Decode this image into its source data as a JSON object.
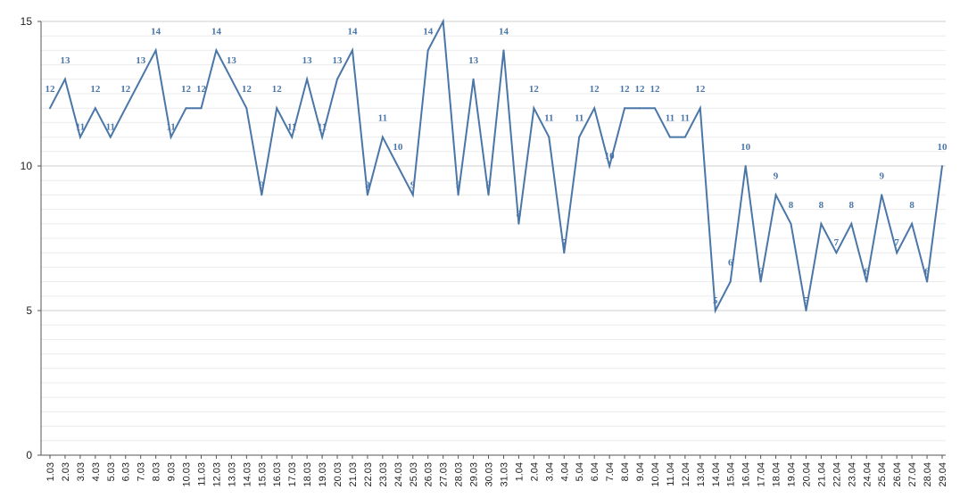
{
  "chart_data": {
    "type": "line",
    "title": "",
    "xlabel": "",
    "ylabel": "",
    "ylim": [
      0,
      15
    ],
    "yticks": [
      0,
      5,
      10,
      15
    ],
    "grid": true,
    "line_color": "#4a76a8",
    "label_color": "#4a76a8",
    "categories": [
      "1.03",
      "2.03",
      "3.03",
      "4.03",
      "5.03",
      "6.03",
      "7.03",
      "8.03",
      "9.03",
      "10.03",
      "11.03",
      "12.03",
      "13.03",
      "14.03",
      "15.03",
      "16.03",
      "17.03",
      "18.03",
      "19.03",
      "20.03",
      "21.03",
      "22.03",
      "23.03",
      "24.03",
      "25.03",
      "26.03",
      "27.03",
      "28.03",
      "29.03",
      "30.03",
      "31.03",
      "1.04",
      "2.04",
      "3.04",
      "4.04",
      "5.04",
      "6.04",
      "7.04",
      "8.04",
      "9.04",
      "10.04",
      "11.04",
      "12.04",
      "13.04",
      "14.04",
      "15.04",
      "16.04",
      "17.04",
      "18.04",
      "19.04",
      "20.04",
      "21.04",
      "22.04",
      "23.04",
      "24.04",
      "25.04",
      "26.04",
      "27.04",
      "28.04",
      "29.04"
    ],
    "series": [
      {
        "values": [
          12,
          13,
          11,
          12,
          11,
          12,
          13,
          14,
          11,
          12,
          12,
          14,
          13,
          12,
          9,
          12,
          11,
          13,
          11,
          13,
          14,
          9,
          11,
          10,
          9,
          14,
          15,
          9,
          13,
          9,
          14,
          8,
          12,
          11,
          7,
          11,
          12,
          10,
          12,
          12,
          12,
          11,
          11,
          12,
          5,
          6,
          10,
          6,
          9,
          8,
          5,
          8,
          7,
          8,
          6,
          9,
          7,
          8,
          6,
          10
        ],
        "labels": [
          "12",
          "13",
          "11",
          "12",
          "11",
          "12",
          "13",
          "14",
          "11",
          "12",
          "12",
          "14",
          "13",
          "12",
          "9",
          "12",
          "11",
          "13",
          "11",
          "13",
          "14",
          "9",
          "11",
          "10",
          "9",
          "14",
          "",
          "9",
          "13",
          "9",
          "14",
          "8",
          "12",
          "11",
          "7",
          "11",
          "12",
          "10",
          "12",
          "12",
          "12",
          "11",
          "11",
          "12",
          "5",
          "6",
          "10",
          "6",
          "9",
          "8",
          "5",
          "8",
          "7",
          "8",
          "6",
          "9",
          "7",
          "8",
          "6",
          "10"
        ]
      }
    ]
  }
}
